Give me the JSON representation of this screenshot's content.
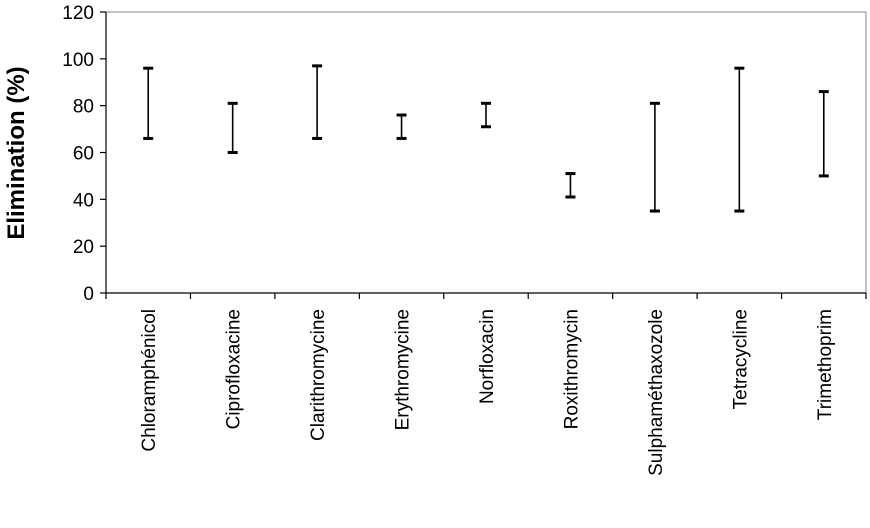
{
  "chart_data": {
    "type": "range",
    "ylabel": "Elimination (%)",
    "xlabel": "",
    "ylim": [
      0,
      120
    ],
    "yticks": [
      0,
      20,
      40,
      60,
      80,
      100,
      120
    ],
    "grid": false,
    "categories": [
      "Chloramphénicol",
      "Ciprofloxacine",
      "Clarithromycine",
      "Erythromycine",
      "Norfloxacin",
      "Roxithromycin",
      "Sulphaméthaxozole",
      "Tetracycline",
      "Trimethoprim"
    ],
    "ranges": [
      {
        "low": 66,
        "high": 96
      },
      {
        "low": 60,
        "high": 81
      },
      {
        "low": 66,
        "high": 97
      },
      {
        "low": 66,
        "high": 76
      },
      {
        "low": 71,
        "high": 81
      },
      {
        "low": 41,
        "high": 51
      },
      {
        "low": 35,
        "high": 81
      },
      {
        "low": 35,
        "high": 96
      },
      {
        "low": 50,
        "high": 86
      }
    ],
    "series_color": "#000000"
  }
}
